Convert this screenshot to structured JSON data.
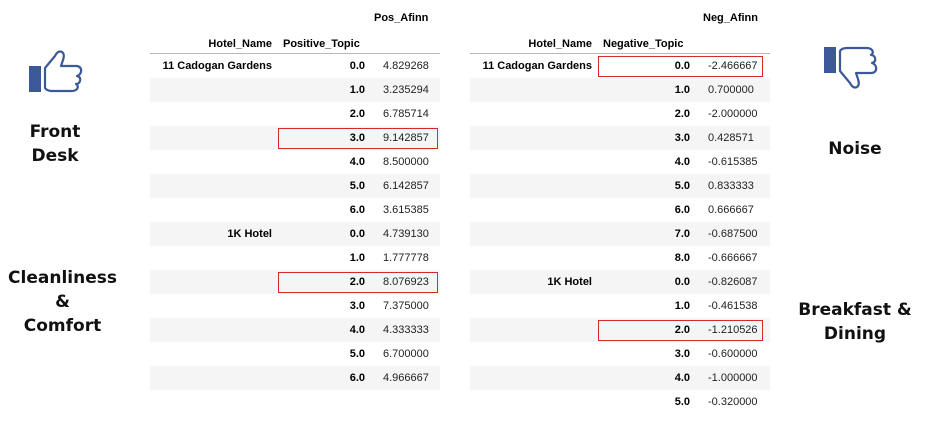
{
  "left_panel": {
    "labels": {
      "front_desk": "Front\nDesk",
      "cleanliness": "Cleanliness &\nComfort"
    }
  },
  "right_panel": {
    "labels": {
      "noise": "Noise",
      "breakfast": "Breakfast &\nDining"
    }
  },
  "positive_table": {
    "value_header": "Pos_Afinn",
    "col_hotel": "Hotel_Name",
    "col_topic": "Positive_Topic",
    "rows": [
      {
        "hotel": "11 Cadogan Gardens",
        "topic": "0.0",
        "value": "4.829268"
      },
      {
        "hotel": "",
        "topic": "1.0",
        "value": "3.235294"
      },
      {
        "hotel": "",
        "topic": "2.0",
        "value": "6.785714"
      },
      {
        "hotel": "",
        "topic": "3.0",
        "value": "9.142857"
      },
      {
        "hotel": "",
        "topic": "4.0",
        "value": "8.500000"
      },
      {
        "hotel": "",
        "topic": "5.0",
        "value": "6.142857"
      },
      {
        "hotel": "",
        "topic": "6.0",
        "value": "3.615385"
      },
      {
        "hotel": "1K Hotel",
        "topic": "0.0",
        "value": "4.739130"
      },
      {
        "hotel": "",
        "topic": "1.0",
        "value": "1.777778"
      },
      {
        "hotel": "",
        "topic": "2.0",
        "value": "8.076923"
      },
      {
        "hotel": "",
        "topic": "3.0",
        "value": "7.375000"
      },
      {
        "hotel": "",
        "topic": "4.0",
        "value": "4.333333"
      },
      {
        "hotel": "",
        "topic": "5.0",
        "value": "6.700000"
      },
      {
        "hotel": "",
        "topic": "6.0",
        "value": "4.966667"
      }
    ],
    "highlighted_rows": [
      3,
      9
    ]
  },
  "negative_table": {
    "value_header": "Neg_Afinn",
    "col_hotel": "Hotel_Name",
    "col_topic": "Negative_Topic",
    "rows": [
      {
        "hotel": "11 Cadogan Gardens",
        "topic": "0.0",
        "value": "-2.466667"
      },
      {
        "hotel": "",
        "topic": "1.0",
        "value": "0.700000"
      },
      {
        "hotel": "",
        "topic": "2.0",
        "value": "-2.000000"
      },
      {
        "hotel": "",
        "topic": "3.0",
        "value": "0.428571"
      },
      {
        "hotel": "",
        "topic": "4.0",
        "value": "-0.615385"
      },
      {
        "hotel": "",
        "topic": "5.0",
        "value": "0.833333"
      },
      {
        "hotel": "",
        "topic": "6.0",
        "value": "0.666667"
      },
      {
        "hotel": "",
        "topic": "7.0",
        "value": "-0.687500"
      },
      {
        "hotel": "",
        "topic": "8.0",
        "value": "-0.666667"
      },
      {
        "hotel": "1K Hotel",
        "topic": "0.0",
        "value": "-0.826087"
      },
      {
        "hotel": "",
        "topic": "1.0",
        "value": "-0.461538"
      },
      {
        "hotel": "",
        "topic": "2.0",
        "value": "-1.210526"
      },
      {
        "hotel": "",
        "topic": "3.0",
        "value": "-0.600000"
      },
      {
        "hotel": "",
        "topic": "4.0",
        "value": "-1.000000"
      },
      {
        "hotel": "",
        "topic": "5.0",
        "value": "-0.320000"
      }
    ],
    "highlighted_rows": [
      0,
      11
    ]
  },
  "icons": {
    "thumbs_up": "thumbs-up-icon",
    "thumbs_down": "thumbs-down-icon"
  },
  "colors": {
    "thumb_blue": "#3b5998",
    "highlight_red": "#d22b2b",
    "stripe": "#f5f5f5"
  }
}
